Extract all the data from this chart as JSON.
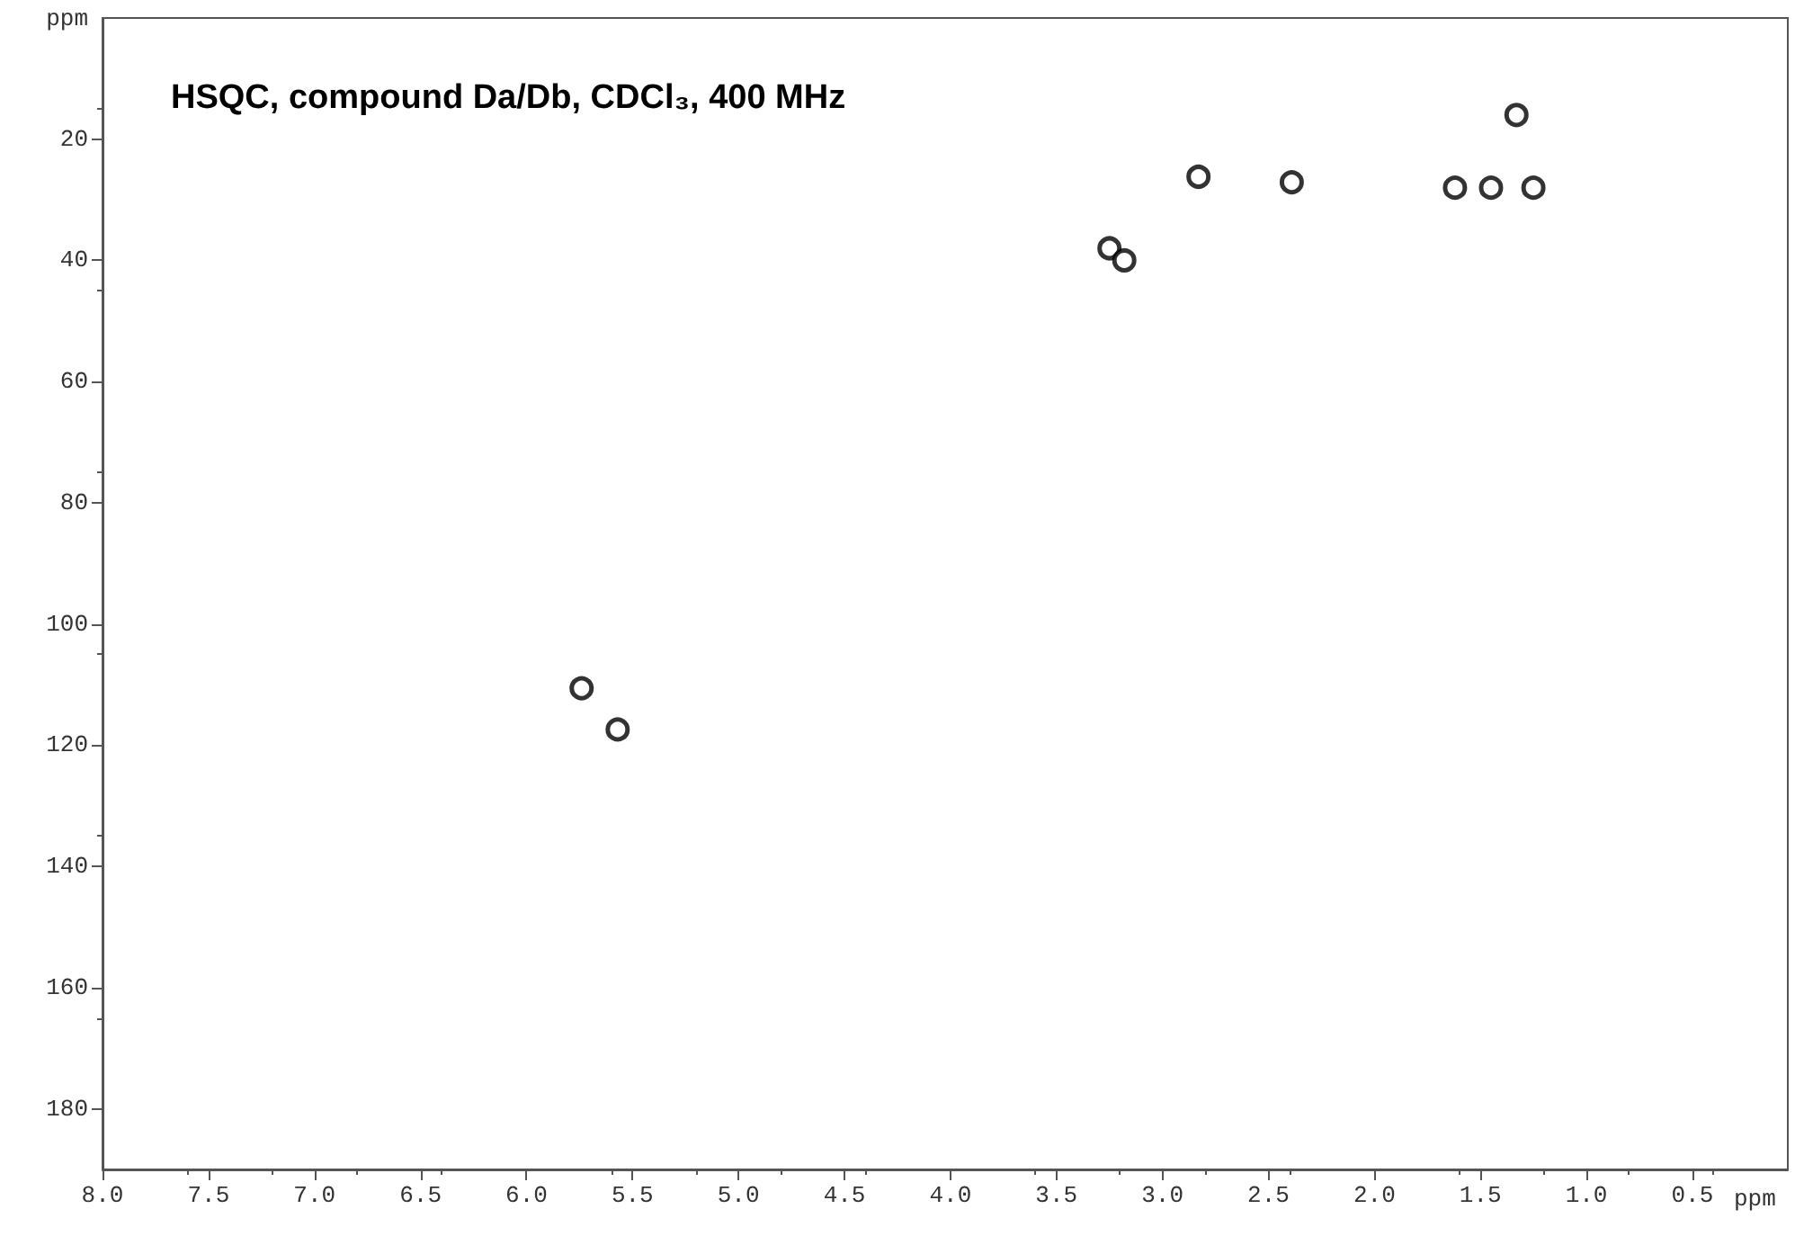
{
  "chart_data": {
    "type": "scatter",
    "title": "HSQC, compound Da/Db, CDCl₃, 400 MHz",
    "xlabel": "ppm",
    "ylabel": "ppm",
    "xlim": [
      8.0,
      0.05
    ],
    "ylim": [
      190,
      0
    ],
    "xticks": [
      {
        "value": 8,
        "label": "8.0"
      },
      7.5,
      {
        "value": 7,
        "label": "7.0"
      },
      6.5,
      {
        "value": 6,
        "label": "6.0"
      },
      5.5,
      {
        "value": 5,
        "label": "5.0"
      },
      4.5,
      {
        "value": 4,
        "label": "4.0"
      },
      3.5,
      {
        "value": 3,
        "label": "3.0"
      },
      2.5,
      {
        "value": 2,
        "label": "2.0"
      },
      1.5,
      {
        "value": 1,
        "label": "1.0"
      },
      0.5
    ],
    "yticks": [
      20,
      40,
      60,
      80,
      100,
      120,
      140,
      160,
      180
    ],
    "x": [
      5.74,
      5.57,
      3.25,
      3.18,
      2.83,
      2.39,
      1.62,
      1.45,
      1.25,
      1.33
    ],
    "series": [
      {
        "color": "#000000",
        "values": [
          110.6,
          117.4,
          38,
          40,
          26.2,
          27.1,
          28,
          28,
          28,
          16
        ]
      }
    ],
    "marker": "circle",
    "grid": false
  }
}
